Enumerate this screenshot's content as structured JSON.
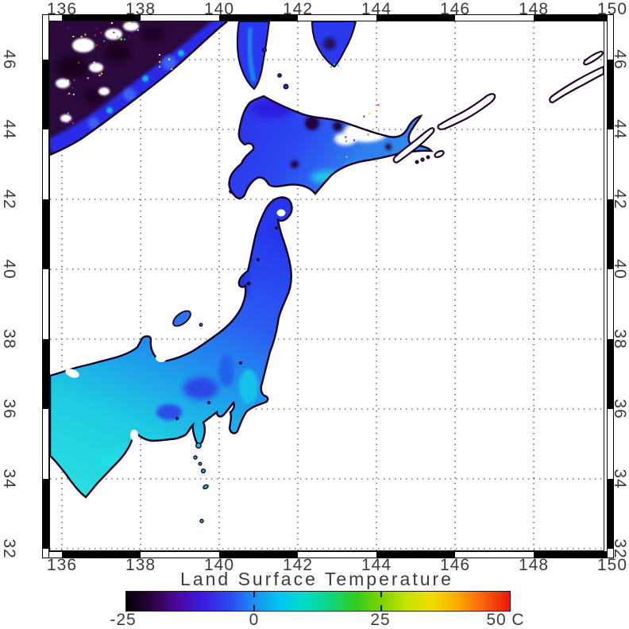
{
  "figure": {
    "title": "Land Surface Temperature"
  },
  "axes": {
    "lon_labels": [
      "136",
      "138",
      "140",
      "142",
      "144",
      "146",
      "148",
      "150"
    ],
    "lat_labels": [
      "46",
      "44",
      "42",
      "40",
      "38",
      "36",
      "34",
      "32"
    ]
  },
  "colorbar": {
    "labels": [
      "-25",
      "0",
      "25",
      "50"
    ],
    "unit": "C",
    "range": {
      "min": -25,
      "max": 50
    },
    "gradient_stops": [
      "#050008",
      "#2a0340",
      "#4c08a0",
      "#3b1de0",
      "#2b46f0",
      "#1d8ef2",
      "#02c6f0",
      "#00dcc8",
      "#0ed67c",
      "#33cc1e",
      "#7ed400",
      "#c8e400",
      "#f2dc00",
      "#fba800",
      "#f86010",
      "#ee1404"
    ]
  },
  "colors": {
    "ocean": "#ffffff",
    "coastline": "#190122",
    "grid": "#1a1a1a",
    "land_cold": "#2b093c",
    "land_cool": "#2b46f0",
    "land_mild": "#20d4e4"
  }
}
